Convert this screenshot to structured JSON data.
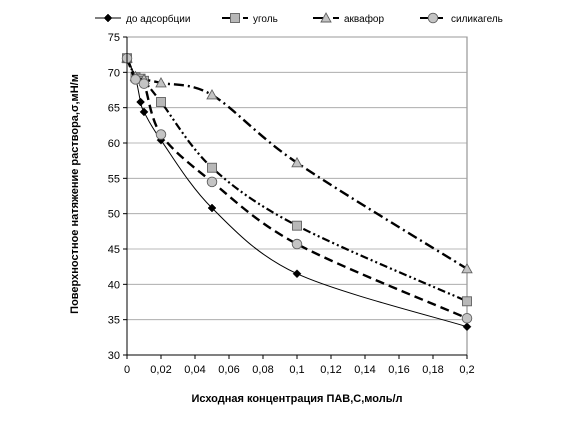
{
  "chart_data": {
    "type": "line",
    "title": "",
    "xlabel": "Исходная концентрация ПАВ,С,моль/л",
    "ylabel": "Поверхностное натяжение раствора,σ,мН/м",
    "xlim": [
      0,
      0.2
    ],
    "ylim": [
      30,
      75
    ],
    "x_ticks": [
      0,
      0.02,
      0.04,
      0.06,
      0.08,
      0.1,
      0.12,
      0.14,
      0.16,
      0.18,
      0.2
    ],
    "x_tick_labels": [
      "0",
      "0,02",
      "0,04",
      "0,06",
      "0,08",
      "0,1",
      "0,12",
      "0,14",
      "0,16",
      "0,18",
      "0,2"
    ],
    "y_ticks": [
      30,
      35,
      40,
      45,
      50,
      55,
      60,
      65,
      70,
      75
    ],
    "y_tick_labels": [
      "30",
      "35",
      "40",
      "45",
      "50",
      "55",
      "60",
      "65",
      "70",
      "75"
    ],
    "grid": "horizontal",
    "legend_position": "top",
    "series": [
      {
        "name": "до адсорбции",
        "marker": "diamond",
        "dash": "solid",
        "color": "#000000",
        "x": [
          0,
          0.005,
          0.008,
          0.01,
          0.02,
          0.05,
          0.1,
          0.2
        ],
        "y": [
          72,
          69.2,
          65.8,
          64.4,
          60.4,
          50.8,
          41.5,
          34
        ]
      },
      {
        "name": "уголь",
        "marker": "square",
        "dash": "dash-dot-dot",
        "color": "#000000",
        "x": [
          0,
          0.005,
          0.008,
          0.01,
          0.02,
          0.05,
          0.1,
          0.2
        ],
        "y": [
          72,
          69.3,
          69.1,
          68.8,
          65.8,
          56.5,
          48.3,
          37.6
        ]
      },
      {
        "name": "аквафор",
        "marker": "triangle",
        "dash": "dash-dot",
        "color": "#000000",
        "x": [
          0,
          0.005,
          0.01,
          0.02,
          0.05,
          0.1,
          0.2
        ],
        "y": [
          72,
          69.4,
          69,
          68.5,
          66.8,
          57.2,
          42.2
        ]
      },
      {
        "name": "силикагель",
        "marker": "circle",
        "dash": "dashed",
        "color": "#000000",
        "x": [
          0,
          0.005,
          0.01,
          0.02,
          0.05,
          0.1,
          0.2
        ],
        "y": [
          72,
          69,
          68.4,
          61.2,
          54.5,
          45.7,
          35.2
        ]
      }
    ]
  }
}
